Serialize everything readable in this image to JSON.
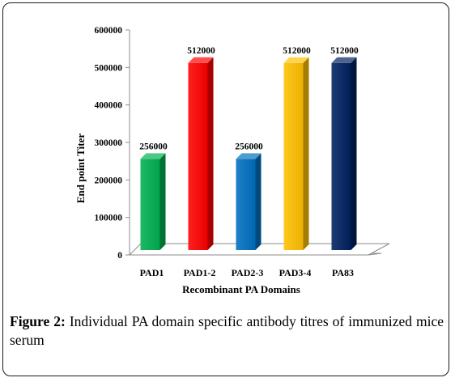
{
  "chart_data": {
    "type": "bar",
    "title": "",
    "xlabel": "Recombinant PA Domains",
    "ylabel": "End point Titer",
    "ylim": [
      0,
      600000
    ],
    "yticks": [
      "0",
      "100000",
      "200000",
      "300000",
      "400000",
      "500000",
      "600000"
    ],
    "grid": false,
    "legend": "none",
    "categories": [
      "PAD1",
      "PAD1-2",
      "PAD2-3",
      "PAD3-4",
      "PA83"
    ],
    "values": [
      256000,
      512000,
      256000,
      512000,
      512000
    ],
    "data_labels": [
      "256000",
      "512000",
      "256000",
      "512000",
      "512000"
    ],
    "colors": [
      "#00b050",
      "#ff0000",
      "#0070c0",
      "#ffc000",
      "#002060"
    ]
  },
  "caption": {
    "label": "Figure 2:",
    "text": "Individual PA domain specific antibody titres of immunized mice serum"
  }
}
